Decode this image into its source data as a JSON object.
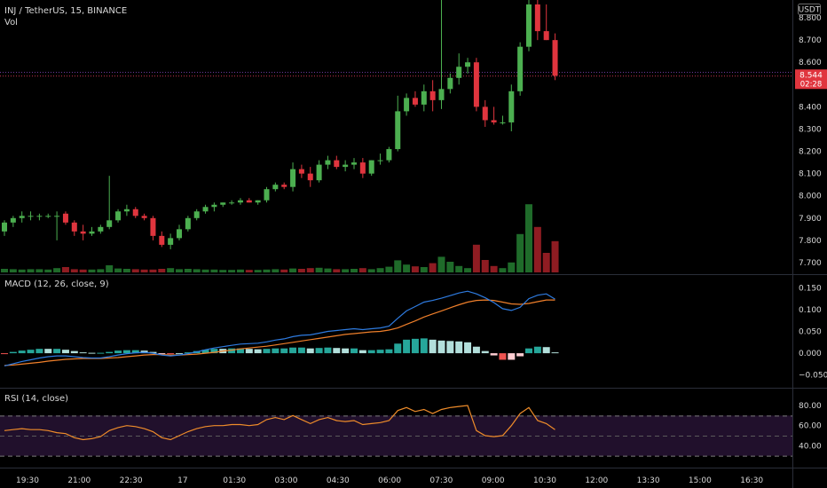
{
  "header": {
    "symbol_line": "INJ / TetherUS, 15, BINANCE",
    "volume_label": "Vol",
    "currency": "USDT"
  },
  "price_badge": {
    "price": "8.544",
    "countdown": "02:28",
    "color": "#e0353e"
  },
  "colors": {
    "up": "#4caf50",
    "down": "#e0353e",
    "vol_up": "#1f6b2a",
    "vol_down": "#8f1c22",
    "macd_line": "#2e7be0",
    "signal_line": "#ef7f2a",
    "rsi_line": "#ef8c2a",
    "rsi_band": "#21102c",
    "hist_pos_strong": "#26a69a",
    "hist_pos_weak": "#b2dfdb",
    "hist_neg_strong": "#ef5350",
    "hist_neg_weak": "#ffcdd2"
  },
  "price_axis": {
    "ticks": [
      "8.800",
      "8.700",
      "8.600",
      "8.400",
      "8.300",
      "8.200",
      "8.100",
      "8.000",
      "7.900",
      "7.800",
      "7.700"
    ],
    "tick_values": [
      8.8,
      8.7,
      8.6,
      8.4,
      8.3,
      8.2,
      8.1,
      8.0,
      7.9,
      7.8,
      7.7
    ],
    "min": 7.66,
    "max": 8.88
  },
  "macd_pane": {
    "label": "MACD (12, 26, close, 9)",
    "ticks": [
      "0.150",
      "0.100",
      "0.050",
      "0.000",
      "−0.050"
    ],
    "tick_values": [
      0.15,
      0.1,
      0.05,
      0.0,
      -0.05
    ]
  },
  "rsi_pane": {
    "label": "RSI (14, close)",
    "ticks": [
      "80.00",
      "60.00",
      "40.00"
    ],
    "tick_values": [
      80,
      60,
      40
    ],
    "band": [
      30,
      70
    ],
    "mid": 50
  },
  "time_axis": {
    "labels": [
      "19:30",
      "21:00",
      "22:30",
      "17",
      "01:30",
      "03:00",
      "04:30",
      "06:00",
      "07:30",
      "09:00",
      "10:30",
      "12:00",
      "13:30",
      "15:00",
      "16:30"
    ]
  },
  "chart_data": {
    "type": "candlestick",
    "interval_min": 15,
    "candles": [
      [
        7.84,
        7.89,
        7.82,
        7.88
      ],
      [
        7.88,
        7.91,
        7.86,
        7.9
      ],
      [
        7.9,
        7.93,
        7.88,
        7.91
      ],
      [
        7.91,
        7.93,
        7.89,
        7.91
      ],
      [
        7.91,
        7.92,
        7.89,
        7.91
      ],
      [
        7.91,
        7.92,
        7.9,
        7.91
      ],
      [
        7.91,
        7.93,
        7.8,
        7.91
      ],
      [
        7.92,
        7.93,
        7.87,
        7.88
      ],
      [
        7.88,
        7.89,
        7.82,
        7.84
      ],
      [
        7.84,
        7.87,
        7.8,
        7.83
      ],
      [
        7.83,
        7.86,
        7.82,
        7.84
      ],
      [
        7.84,
        7.87,
        7.83,
        7.86
      ],
      [
        7.86,
        8.09,
        7.85,
        7.89
      ],
      [
        7.89,
        7.94,
        7.88,
        7.93
      ],
      [
        7.93,
        7.96,
        7.91,
        7.94
      ],
      [
        7.94,
        7.95,
        7.9,
        7.91
      ],
      [
        7.91,
        7.92,
        7.89,
        7.9
      ],
      [
        7.9,
        7.91,
        7.8,
        7.82
      ],
      [
        7.82,
        7.84,
        7.77,
        7.78
      ],
      [
        7.78,
        7.83,
        7.76,
        7.81
      ],
      [
        7.81,
        7.87,
        7.8,
        7.85
      ],
      [
        7.85,
        7.91,
        7.84,
        7.9
      ],
      [
        7.9,
        7.94,
        7.89,
        7.93
      ],
      [
        7.93,
        7.96,
        7.92,
        7.95
      ],
      [
        7.95,
        7.97,
        7.93,
        7.96
      ],
      [
        7.96,
        7.97,
        7.95,
        7.97
      ],
      [
        7.97,
        7.98,
        7.96,
        7.97
      ],
      [
        7.97,
        7.99,
        7.96,
        7.98
      ],
      [
        7.98,
        7.99,
        7.97,
        7.97
      ],
      [
        7.97,
        7.98,
        7.96,
        7.98
      ],
      [
        7.98,
        8.04,
        7.97,
        8.03
      ],
      [
        8.03,
        8.06,
        8.02,
        8.05
      ],
      [
        8.05,
        8.06,
        8.03,
        8.04
      ],
      [
        8.04,
        8.15,
        8.02,
        8.12
      ],
      [
        8.12,
        8.14,
        8.08,
        8.1
      ],
      [
        8.1,
        8.13,
        8.04,
        8.07
      ],
      [
        8.07,
        8.16,
        8.06,
        8.14
      ],
      [
        8.14,
        8.18,
        8.12,
        8.16
      ],
      [
        8.16,
        8.18,
        8.12,
        8.13
      ],
      [
        8.13,
        8.16,
        8.11,
        8.14
      ],
      [
        8.14,
        8.17,
        8.12,
        8.15
      ],
      [
        8.15,
        8.17,
        8.08,
        8.1
      ],
      [
        8.1,
        8.16,
        8.09,
        8.16
      ],
      [
        8.16,
        8.19,
        8.14,
        8.16
      ],
      [
        8.16,
        8.22,
        8.15,
        8.21
      ],
      [
        8.21,
        8.45,
        8.2,
        8.38
      ],
      [
        8.38,
        8.46,
        8.36,
        8.44
      ],
      [
        8.44,
        8.47,
        8.4,
        8.41
      ],
      [
        8.41,
        8.5,
        8.38,
        8.47
      ],
      [
        8.47,
        8.52,
        8.38,
        8.43
      ],
      [
        8.43,
        8.92,
        8.39,
        8.48
      ],
      [
        8.48,
        8.55,
        8.46,
        8.53
      ],
      [
        8.53,
        8.64,
        8.5,
        8.58
      ],
      [
        8.58,
        8.62,
        8.55,
        8.6
      ],
      [
        8.6,
        8.62,
        8.38,
        8.4
      ],
      [
        8.4,
        8.43,
        8.31,
        8.34
      ],
      [
        8.34,
        8.4,
        8.32,
        8.33
      ],
      [
        8.33,
        8.36,
        8.32,
        8.33
      ],
      [
        8.33,
        8.5,
        8.29,
        8.47
      ],
      [
        8.47,
        8.69,
        8.45,
        8.67
      ],
      [
        8.67,
        8.9,
        8.65,
        8.86
      ],
      [
        8.86,
        8.91,
        8.7,
        8.74
      ],
      [
        8.74,
        8.86,
        8.7,
        8.7
      ],
      [
        8.7,
        8.73,
        8.52,
        8.54
      ]
    ],
    "volume": [
      10,
      9,
      8,
      9,
      9,
      8,
      12,
      15,
      9,
      8,
      8,
      9,
      20,
      11,
      10,
      9,
      8,
      8,
      10,
      12,
      9,
      10,
      9,
      8,
      8,
      7,
      7,
      8,
      7,
      7,
      8,
      9,
      8,
      11,
      10,
      12,
      13,
      11,
      9,
      9,
      10,
      12,
      9,
      12,
      16,
      34,
      22,
      17,
      15,
      26,
      44,
      30,
      18,
      12,
      78,
      35,
      18,
      12,
      28,
      108,
      192,
      128,
      55,
      88
    ],
    "macd": [
      -0.029,
      -0.024,
      -0.019,
      -0.015,
      -0.011,
      -0.008,
      -0.006,
      -0.006,
      -0.008,
      -0.01,
      -0.011,
      -0.011,
      -0.008,
      -0.004,
      -0.001,
      0.001,
      0.002,
      0.0,
      -0.004,
      -0.006,
      -0.004,
      -0.001,
      0.003,
      0.008,
      0.012,
      0.015,
      0.018,
      0.021,
      0.022,
      0.023,
      0.026,
      0.03,
      0.033,
      0.038,
      0.041,
      0.042,
      0.046,
      0.05,
      0.052,
      0.054,
      0.056,
      0.054,
      0.056,
      0.058,
      0.062,
      0.08,
      0.097,
      0.107,
      0.117,
      0.121,
      0.126,
      0.132,
      0.138,
      0.142,
      0.136,
      0.127,
      0.116,
      0.102,
      0.098,
      0.105,
      0.125,
      0.133,
      0.136,
      0.124
    ],
    "signal": [
      -0.028,
      -0.027,
      -0.025,
      -0.023,
      -0.021,
      -0.018,
      -0.016,
      -0.014,
      -0.013,
      -0.012,
      -0.012,
      -0.012,
      -0.011,
      -0.01,
      -0.008,
      -0.006,
      -0.004,
      -0.003,
      -0.003,
      -0.004,
      -0.004,
      -0.003,
      -0.002,
      0.0,
      0.002,
      0.005,
      0.007,
      0.01,
      0.012,
      0.014,
      0.016,
      0.019,
      0.022,
      0.025,
      0.028,
      0.031,
      0.034,
      0.037,
      0.04,
      0.043,
      0.045,
      0.047,
      0.049,
      0.05,
      0.053,
      0.058,
      0.066,
      0.074,
      0.083,
      0.09,
      0.097,
      0.104,
      0.111,
      0.117,
      0.121,
      0.122,
      0.121,
      0.117,
      0.113,
      0.112,
      0.114,
      0.118,
      0.122,
      0.122
    ],
    "rsi": [
      55,
      56,
      57,
      56,
      56,
      55,
      53,
      52,
      48,
      46,
      47,
      49,
      55,
      58,
      60,
      59,
      57,
      54,
      48,
      46,
      50,
      54,
      57,
      59,
      60,
      60,
      61,
      61,
      60,
      61,
      66,
      68,
      66,
      70,
      66,
      62,
      66,
      68,
      65,
      64,
      65,
      61,
      62,
      63,
      65,
      75,
      78,
      74,
      76,
      72,
      76,
      78,
      79,
      80,
      55,
      50,
      49,
      50,
      60,
      72,
      78,
      65,
      62,
      56
    ]
  }
}
